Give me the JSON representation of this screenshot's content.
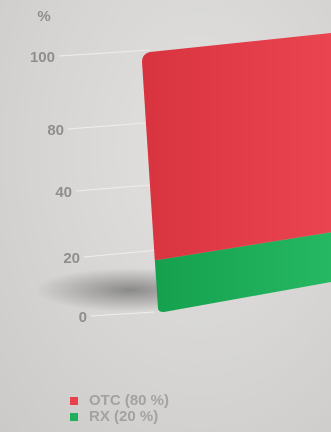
{
  "chart_data": {
    "type": "bar",
    "stacked": true,
    "categories": [
      ""
    ],
    "series": [
      {
        "name": "RX (20 %)",
        "values": [
          20
        ],
        "color": "#1fb05a"
      },
      {
        "name": "OTC (80 %)",
        "values": [
          80
        ],
        "color": "#e8404c"
      }
    ],
    "ylabel": "%",
    "yticks": [
      0,
      20,
      40,
      80,
      100
    ],
    "ylim": [
      0,
      100
    ],
    "legend_position": "bottom-left",
    "grid": false
  },
  "legend": [
    {
      "label": "OTC (80 %)",
      "color": "#e8404c"
    },
    {
      "label": "RX (20 %)",
      "color": "#1fb05a"
    }
  ]
}
